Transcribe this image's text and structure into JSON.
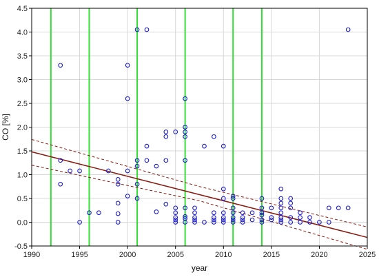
{
  "chart_data": {
    "type": "scatter",
    "xlabel": "year",
    "ylabel": "CO [%]",
    "xlim": [
      1990,
      2025
    ],
    "ylim": [
      -0.5,
      4.5
    ],
    "x_ticks": [
      1990,
      1995,
      2000,
      2005,
      2010,
      2015,
      2020,
      2025
    ],
    "y_ticks": [
      -0.5,
      0.0,
      0.5,
      1.0,
      1.5,
      2.0,
      2.5,
      3.0,
      3.5,
      4.0,
      4.5
    ],
    "grid": true,
    "points": [
      [
        1993,
        3.3
      ],
      [
        1993,
        1.3
      ],
      [
        1993,
        0.8
      ],
      [
        1994,
        1.08
      ],
      [
        1995,
        1.08
      ],
      [
        1995,
        0.0
      ],
      [
        1996,
        0.2
      ],
      [
        1997,
        0.2
      ],
      [
        1998,
        1.08
      ],
      [
        1999,
        0.9
      ],
      [
        1999,
        0.8
      ],
      [
        1999,
        0.4
      ],
      [
        1999,
        0.18
      ],
      [
        1999,
        0.0
      ],
      [
        2000,
        3.3
      ],
      [
        2000,
        2.6
      ],
      [
        2000,
        1.08
      ],
      [
        2000,
        0.55
      ],
      [
        2001,
        4.05
      ],
      [
        2001,
        1.3
      ],
      [
        2001,
        1.18
      ],
      [
        2001,
        0.8
      ],
      [
        2001,
        0.5
      ],
      [
        2002,
        4.05
      ],
      [
        2002,
        1.6
      ],
      [
        2002,
        1.3
      ],
      [
        2003,
        1.18
      ],
      [
        2003,
        0.22
      ],
      [
        2004,
        1.9
      ],
      [
        2004,
        1.8
      ],
      [
        2004,
        1.3
      ],
      [
        2004,
        0.38
      ],
      [
        2005,
        1.9
      ],
      [
        2005,
        0.3
      ],
      [
        2005,
        0.2
      ],
      [
        2005,
        0.1
      ],
      [
        2005,
        0.05
      ],
      [
        2005,
        0.0
      ],
      [
        2006,
        2.6
      ],
      [
        2006,
        2.0
      ],
      [
        2006,
        1.9
      ],
      [
        2006,
        1.8
      ],
      [
        2006,
        1.3
      ],
      [
        2006,
        0.3
      ],
      [
        2006,
        0.12
      ],
      [
        2006,
        0.08
      ],
      [
        2006,
        0.0
      ],
      [
        2007,
        0.3
      ],
      [
        2007,
        0.2
      ],
      [
        2007,
        0.1
      ],
      [
        2007,
        0.05
      ],
      [
        2007,
        0.0
      ],
      [
        2008,
        1.6
      ],
      [
        2008,
        0.0
      ],
      [
        2009,
        1.8
      ],
      [
        2009,
        0.2
      ],
      [
        2009,
        0.1
      ],
      [
        2009,
        0.05
      ],
      [
        2009,
        0.0
      ],
      [
        2010,
        1.6
      ],
      [
        2010,
        0.7
      ],
      [
        2010,
        0.5
      ],
      [
        2010,
        0.2
      ],
      [
        2010,
        0.1
      ],
      [
        2010,
        0.05
      ],
      [
        2010,
        0.0
      ],
      [
        2011,
        0.55
      ],
      [
        2011,
        0.5
      ],
      [
        2011,
        0.3
      ],
      [
        2011,
        0.2
      ],
      [
        2011,
        0.1
      ],
      [
        2011,
        0.05
      ],
      [
        2011,
        0.0
      ],
      [
        2012,
        0.2
      ],
      [
        2012,
        0.1
      ],
      [
        2012,
        0.05
      ],
      [
        2012,
        0.0
      ],
      [
        2013,
        0.2
      ],
      [
        2013,
        0.05
      ],
      [
        2014,
        0.5
      ],
      [
        2014,
        0.3
      ],
      [
        2014,
        0.2
      ],
      [
        2014,
        0.15
      ],
      [
        2014,
        0.05
      ],
      [
        2014,
        0.0
      ],
      [
        2015,
        0.3
      ],
      [
        2015,
        0.1
      ],
      [
        2015,
        0.05
      ],
      [
        2016,
        0.7
      ],
      [
        2016,
        0.5
      ],
      [
        2016,
        0.4
      ],
      [
        2016,
        0.3
      ],
      [
        2016,
        0.2
      ],
      [
        2016,
        0.1
      ],
      [
        2016,
        0.05
      ],
      [
        2016,
        0.0
      ],
      [
        2017,
        0.5
      ],
      [
        2017,
        0.4
      ],
      [
        2017,
        0.3
      ],
      [
        2017,
        0.1
      ],
      [
        2017,
        0.0
      ],
      [
        2018,
        0.2
      ],
      [
        2018,
        0.1
      ],
      [
        2018,
        0.0
      ],
      [
        2019,
        0.1
      ],
      [
        2019,
        0.0
      ],
      [
        2020,
        0.0
      ],
      [
        2021,
        0.3
      ],
      [
        2021,
        0.0
      ],
      [
        2022,
        0.3
      ],
      [
        2023,
        4.05
      ],
      [
        2023,
        0.3
      ]
    ],
    "vertical_lines_x": [
      1992,
      1996,
      2001,
      2006,
      2011,
      2014
    ],
    "regression": {
      "x": [
        1990,
        2025
      ],
      "y": [
        1.48,
        -0.32
      ]
    },
    "confidence_band_upper": {
      "x": [
        1990,
        2007.5,
        2025
      ],
      "y": [
        1.74,
        0.75,
        -0.1
      ]
    },
    "confidence_band_lower": {
      "x": [
        1990,
        2007.5,
        2025
      ],
      "y": [
        1.2,
        0.45,
        -0.57
      ]
    },
    "colors": {
      "points": "#1c1ccc",
      "vertical_lines": "#33dd33",
      "regression": "#8b1a10",
      "grid": "#d8d8d8",
      "axes": "#000000"
    }
  }
}
